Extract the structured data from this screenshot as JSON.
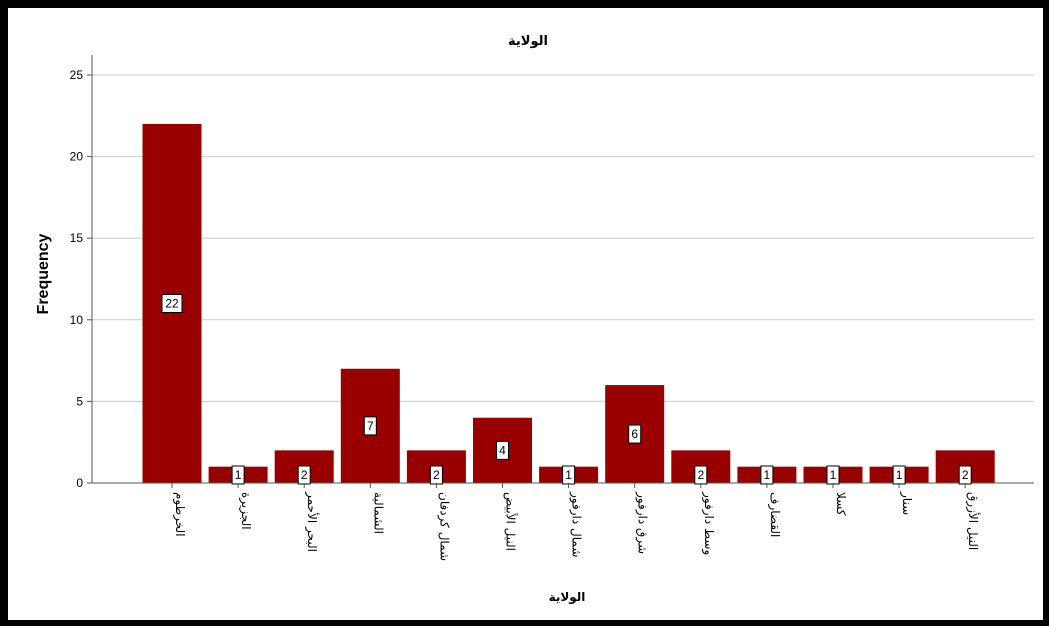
{
  "chart_data": {
    "type": "bar",
    "title": "الولاية",
    "xlabel": "الولاية",
    "ylabel": "Frequency",
    "ylim": [
      0,
      25
    ],
    "yticks": [
      0,
      5,
      10,
      15,
      20,
      25
    ],
    "grid": true,
    "categories": [
      "الخرطوم",
      "الجزيرة",
      "البحر الأحمر",
      "الشمالية",
      "شمال كردفان",
      "النيل الأبيض",
      "شمال دارفور",
      "شرق دارفور",
      "وسط دارفور",
      "القضارف",
      "كسلا",
      "سنار",
      "النيل الأزرق"
    ],
    "values": [
      22,
      1,
      2,
      7,
      2,
      4,
      1,
      6,
      2,
      1,
      1,
      1,
      2
    ],
    "bar_color": "#990000"
  }
}
